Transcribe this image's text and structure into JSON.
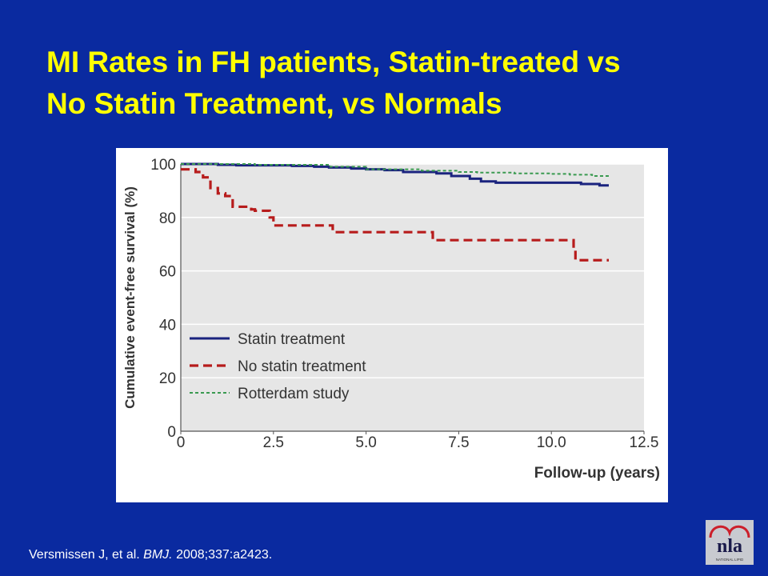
{
  "slide": {
    "title_line1": "MI Rates in FH patients, Statin-treated vs",
    "title_line2": "No Statin Treatment, vs Normals",
    "citation_authors": "Versmissen J, et al. ",
    "citation_journal": "BMJ.",
    "citation_rest": " 2008;337:a2423."
  },
  "logo": {
    "text": "nla",
    "subtext": "NATIONAL LIPID ASSOCIATION"
  },
  "colors": {
    "background": "#0a2aa0",
    "title": "#ffff00",
    "plot_bg": "#e6e6e6",
    "statin": "#1a237e",
    "no_statin": "#b71c1c",
    "rotterdam": "#3a9a50"
  },
  "chart_data": {
    "type": "line",
    "xlabel": "Follow-up (years)",
    "ylabel": "Cumulative event-free survival (%)",
    "xlim": [
      0,
      12.5
    ],
    "ylim": [
      0,
      100
    ],
    "x_ticks": [
      "0",
      "2.5",
      "5.0",
      "7.5",
      "10.0",
      "12.5"
    ],
    "y_ticks": [
      "0",
      "20",
      "40",
      "60",
      "80",
      "100"
    ],
    "grid": true,
    "legend_position": "lower-left",
    "step": true,
    "series": [
      {
        "name": "Statin treatment",
        "color": "#1a237e",
        "style": "solid",
        "x": [
          0,
          0.5,
          1.0,
          1.5,
          2.5,
          3.0,
          3.4,
          3.6,
          4.0,
          4.3,
          4.6,
          5.0,
          5.5,
          6.0,
          6.6,
          6.9,
          7.3,
          7.8,
          8.1,
          8.5,
          9.0,
          10.0,
          10.8,
          11.3,
          11.55
        ],
        "y": [
          100,
          100,
          99.7,
          99.5,
          99.5,
          99.3,
          99.3,
          99.0,
          98.7,
          98.7,
          98.3,
          98.0,
          97.7,
          97.0,
          97.0,
          96.5,
          95.5,
          94.5,
          93.5,
          93.0,
          93.0,
          93.0,
          92.5,
          92.0,
          92.0
        ]
      },
      {
        "name": "No statin treatment",
        "color": "#b71c1c",
        "style": "dashed",
        "x": [
          0,
          0.25,
          0.4,
          0.6,
          0.8,
          1.0,
          1.2,
          1.4,
          1.9,
          2.0,
          2.3,
          2.4,
          2.5,
          2.7,
          3.4,
          3.9,
          4.1,
          5.0,
          6.0,
          6.6,
          6.8,
          7.0,
          10.5,
          10.6,
          10.65,
          11.55
        ],
        "y": [
          98,
          98,
          97,
          95,
          91,
          89,
          88,
          84,
          83,
          82.5,
          82.5,
          80,
          77,
          77,
          77,
          77,
          74.5,
          74.5,
          74.5,
          74.5,
          71.5,
          71.5,
          71.5,
          68,
          64,
          64
        ]
      },
      {
        "name": "Rotterdam study",
        "color": "#3a9a50",
        "style": "dotted",
        "x": [
          0,
          2.0,
          4.0,
          5.0,
          6.5,
          7.5,
          8.0,
          9.0,
          10.0,
          10.5,
          11.1,
          11.55
        ],
        "y": [
          100,
          99.7,
          99.0,
          98.0,
          97.5,
          97.0,
          96.8,
          96.5,
          96.3,
          96.0,
          95.5,
          95.3
        ]
      }
    ]
  }
}
